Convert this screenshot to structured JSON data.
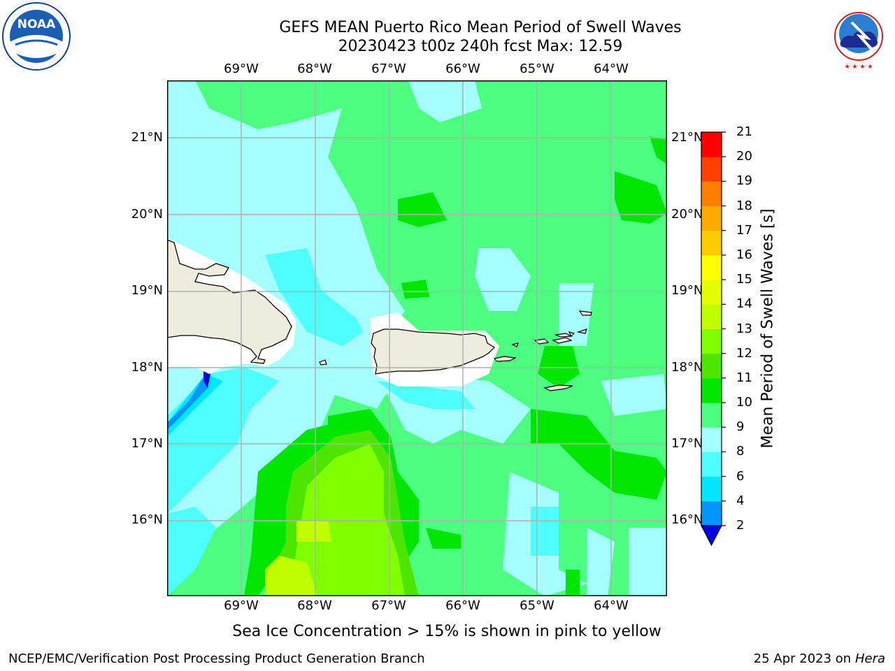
{
  "header": {
    "title_line1": "GEFS MEAN Puerto Rico Mean Period of Swell Waves",
    "title_line2": "20230423 t00z 240h fcst   Max: 12.59"
  },
  "map": {
    "lon_labels": [
      "69°W",
      "68°W",
      "67°W",
      "66°W",
      "65°W",
      "64°W"
    ],
    "lat_labels": [
      "21°N",
      "20°N",
      "19°N",
      "18°N",
      "17°N",
      "16°N"
    ],
    "colors": {
      "land": "#eeecdc",
      "ice_shadow": "#ffffff",
      "grid": "#b0b0b0"
    }
  },
  "colorbar": {
    "label": "Mean Period of Swell Waves [s]",
    "ticks": [
      "21",
      "20",
      "19",
      "18",
      "17",
      "16",
      "15",
      "14",
      "13",
      "12",
      "11",
      "10",
      "9",
      "8",
      "6",
      "4",
      "2"
    ],
    "colors": [
      "#0000e6",
      "#0096ff",
      "#00e6ff",
      "#4dffff",
      "#a6ffff",
      "#4dff80",
      "#00e600",
      "#4de600",
      "#80ff00",
      "#bfff00",
      "#e6ff00",
      "#ffff00",
      "#ffcc00",
      "#ffaa00",
      "#ff8000",
      "#ff4000",
      "#ff0000"
    ]
  },
  "footer": {
    "subtitle": "Sea Ice Concentration > 15% is shown in pink to yellow",
    "left": "NCEP/EMC/Verification Post Processing Product Generation Branch",
    "date": "25 Apr 2023 on",
    "machine": "Hera"
  },
  "logos": {
    "noaa_text": "NOAA",
    "noaa_ring": "NATIONAL OCEANIC AND ATMOSPHERIC ADMINISTRATION",
    "nws_ring": "NATIONAL WEATHER SERVICE"
  }
}
